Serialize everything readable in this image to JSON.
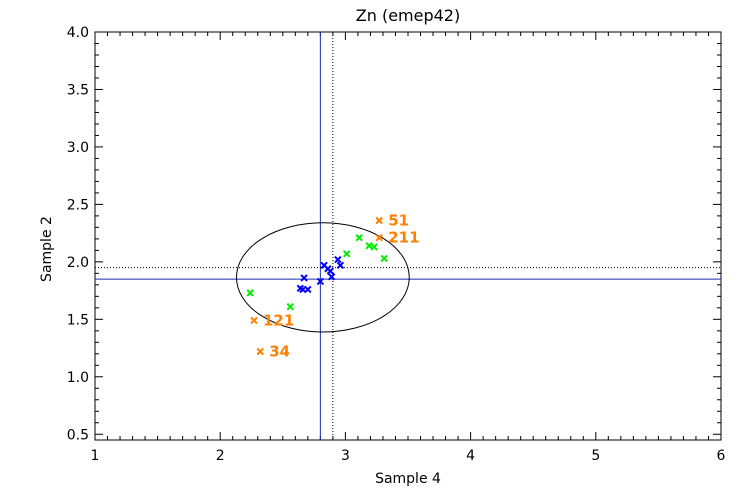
{
  "chart_data": {
    "type": "scatter",
    "title": "Zn (emep42)",
    "xlabel": "Sample 4",
    "ylabel": "Sample 2",
    "xlim": [
      1,
      6
    ],
    "ylim": [
      0.45,
      4.0
    ],
    "xticks": [
      1,
      2,
      3,
      4,
      5,
      6
    ],
    "yticks": [
      "0.5",
      "1.0",
      "1.5",
      "2.0",
      "2.5",
      "3.0",
      "3.5",
      "4.0"
    ],
    "ytick_values": [
      0.5,
      1.0,
      1.5,
      2.0,
      2.5,
      3.0,
      3.5,
      4.0
    ],
    "grid": false,
    "ref_lines": {
      "v_solid": 2.8,
      "v_dotted": 2.9,
      "h_solid": 1.85,
      "h_dotted": 1.95
    },
    "ellipse": {
      "cx": 2.82,
      "cy": 1.865,
      "rx": 0.69,
      "ry": 0.475
    },
    "series": [
      {
        "color": "#0000ff",
        "points": [
          [
            2.64,
            1.77
          ],
          [
            2.67,
            1.86
          ],
          [
            2.7,
            1.76
          ],
          [
            2.66,
            1.76
          ],
          [
            2.8,
            1.83
          ],
          [
            2.83,
            1.97
          ],
          [
            2.86,
            1.94
          ],
          [
            2.88,
            1.92
          ],
          [
            2.89,
            1.87
          ],
          [
            2.94,
            2.02
          ],
          [
            2.96,
            1.97
          ]
        ]
      },
      {
        "color": "#00ee00",
        "points": [
          [
            2.24,
            1.73
          ],
          [
            2.56,
            1.61
          ],
          [
            3.01,
            2.07
          ],
          [
            3.11,
            2.21
          ],
          [
            3.19,
            2.14
          ],
          [
            3.23,
            2.13
          ],
          [
            3.31,
            2.03
          ]
        ]
      },
      {
        "color": "#ff7f00",
        "points": [
          [
            2.27,
            1.49
          ],
          [
            2.32,
            1.22
          ],
          [
            3.27,
            2.36
          ],
          [
            3.27,
            2.21
          ]
        ],
        "labels": [
          "121",
          "34",
          "51",
          "211"
        ]
      }
    ]
  }
}
